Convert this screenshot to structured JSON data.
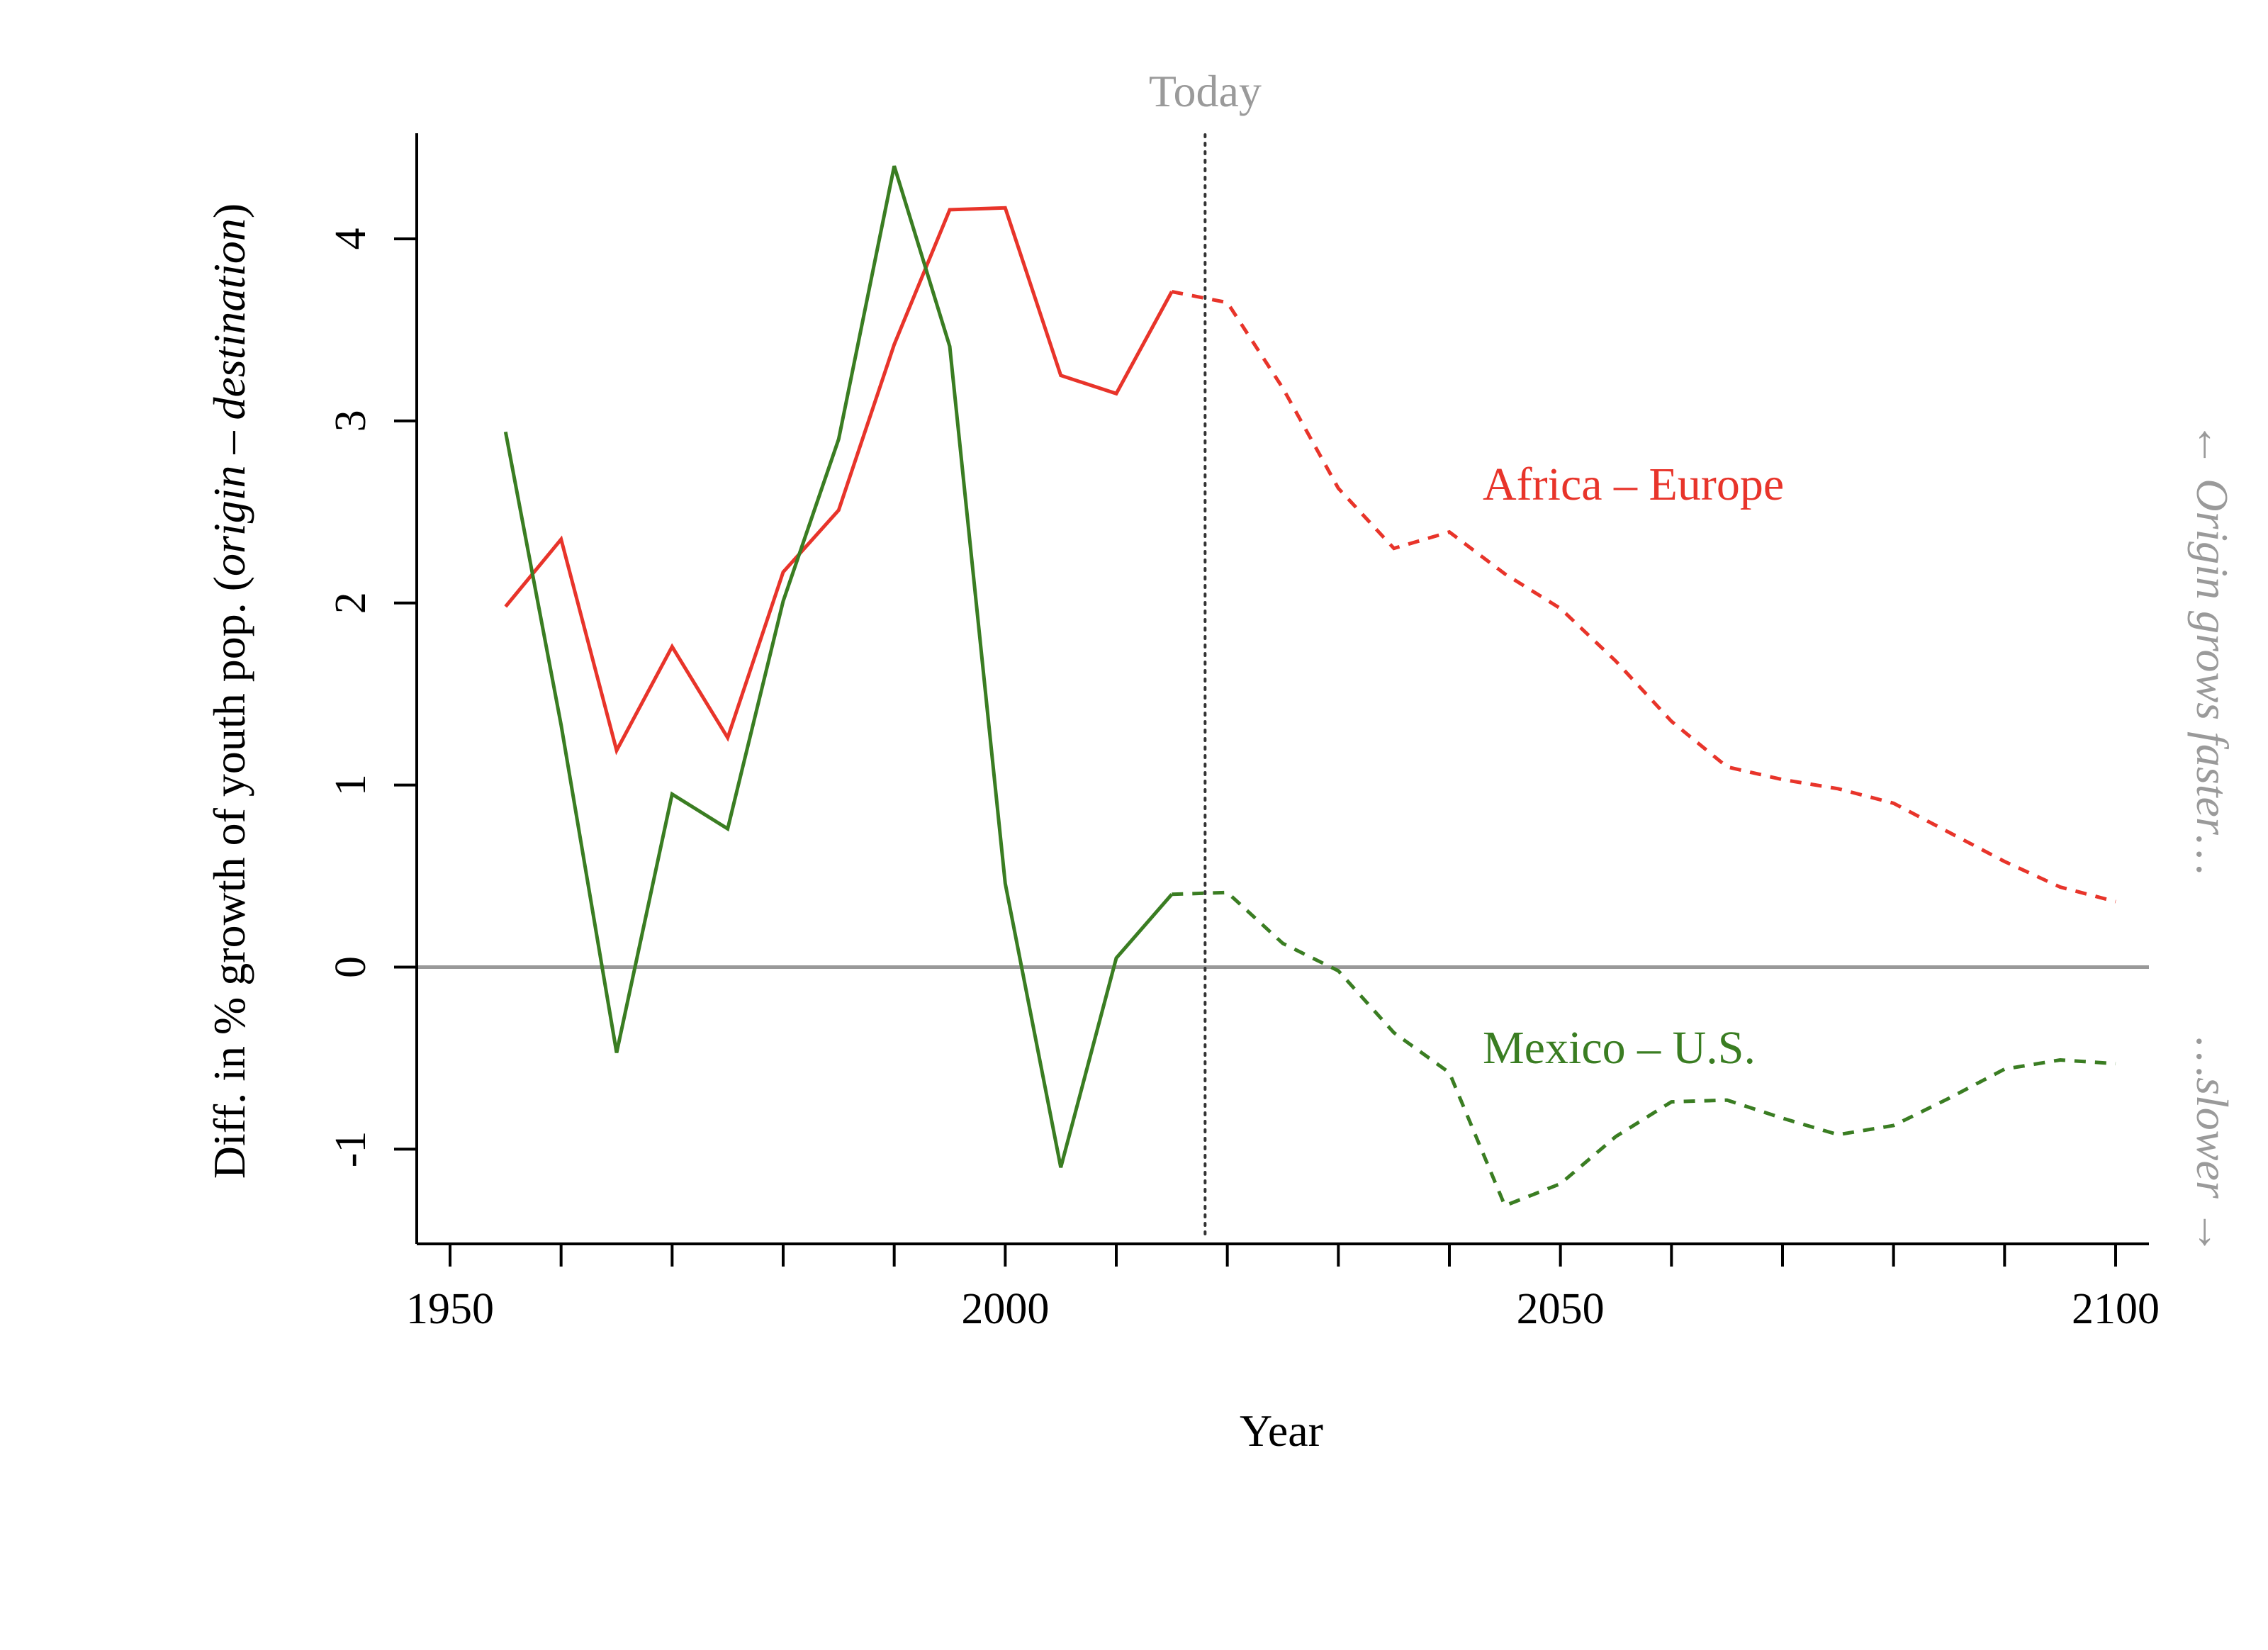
{
  "chart_data": {
    "type": "line",
    "xlabel": "Year",
    "ylabel": {
      "prefix": "Diff. in % growth of youth pop. (",
      "origin": "origin",
      "separator": " – ",
      "destination": "destination",
      "suffix": ")"
    },
    "xlim": [
      1947,
      2103
    ],
    "ylim": [
      -1.52,
      4.58
    ],
    "x_ticks": [
      1950,
      1960,
      1970,
      1980,
      1990,
      2000,
      2010,
      2020,
      2030,
      2040,
      2050,
      2060,
      2070,
      2080,
      2090,
      2100
    ],
    "x_tick_labels": [
      {
        "value": 1950,
        "label": "1950"
      },
      {
        "value": 2000,
        "label": "2000"
      },
      {
        "value": 2050,
        "label": "2050"
      },
      {
        "value": 2100,
        "label": "2100"
      }
    ],
    "y_ticks": [
      {
        "value": -1,
        "label": "-1"
      },
      {
        "value": 0,
        "label": "0"
      },
      {
        "value": 1,
        "label": "1"
      },
      {
        "value": 2,
        "label": "2"
      },
      {
        "value": 3,
        "label": "3"
      },
      {
        "value": 4,
        "label": "4"
      }
    ],
    "reference_lines": {
      "today": {
        "x": 2018,
        "label": "Today",
        "color": "#333333",
        "style": "dotted"
      },
      "zero": {
        "y": 0,
        "color": "#999999"
      }
    },
    "side_annotations": {
      "upper": "← Origin grows faster…",
      "lower": "…slower →",
      "color": "#9a9a9a"
    },
    "grid": false,
    "series": [
      {
        "name": "Africa – Europe",
        "color": "#e8342a",
        "historical": {
          "x": [
            1955,
            1960,
            1965,
            1970,
            1975,
            1980,
            1985,
            1990,
            1995,
            2000,
            2005,
            2010,
            2015
          ],
          "y": [
            1.98,
            2.35,
            1.19,
            1.76,
            1.26,
            2.17,
            2.51,
            3.42,
            4.16,
            4.17,
            3.25,
            3.15,
            3.71
          ]
        },
        "projected": {
          "x": [
            2015,
            2020,
            2025,
            2030,
            2035,
            2040,
            2045,
            2050,
            2055,
            2060,
            2065,
            2070,
            2075,
            2080,
            2085,
            2090,
            2095,
            2100
          ],
          "y": [
            3.71,
            3.65,
            3.18,
            2.63,
            2.3,
            2.39,
            2.16,
            1.97,
            1.68,
            1.35,
            1.1,
            1.03,
            0.98,
            0.9,
            0.74,
            0.58,
            0.44,
            0.36
          ]
        }
      },
      {
        "name": "Mexico – U.S.",
        "color": "#3a7d22",
        "historical": {
          "x": [
            1955,
            1960,
            1965,
            1970,
            1975,
            1980,
            1985,
            1990,
            1995,
            2000,
            2005,
            2010,
            2015
          ],
          "y": [
            2.94,
            1.33,
            -0.47,
            0.95,
            0.76,
            2.01,
            2.9,
            4.4,
            3.41,
            0.46,
            -1.1,
            0.05,
            0.4
          ]
        },
        "projected": {
          "x": [
            2015,
            2020,
            2025,
            2030,
            2035,
            2040,
            2045,
            2050,
            2055,
            2060,
            2065,
            2070,
            2075,
            2080,
            2085,
            2090,
            2095,
            2100
          ],
          "y": [
            0.4,
            0.41,
            0.13,
            -0.02,
            -0.36,
            -0.58,
            -1.31,
            -1.19,
            -0.93,
            -0.74,
            -0.73,
            -0.83,
            -0.92,
            -0.87,
            -0.72,
            -0.56,
            -0.51,
            -0.53
          ]
        }
      }
    ]
  }
}
